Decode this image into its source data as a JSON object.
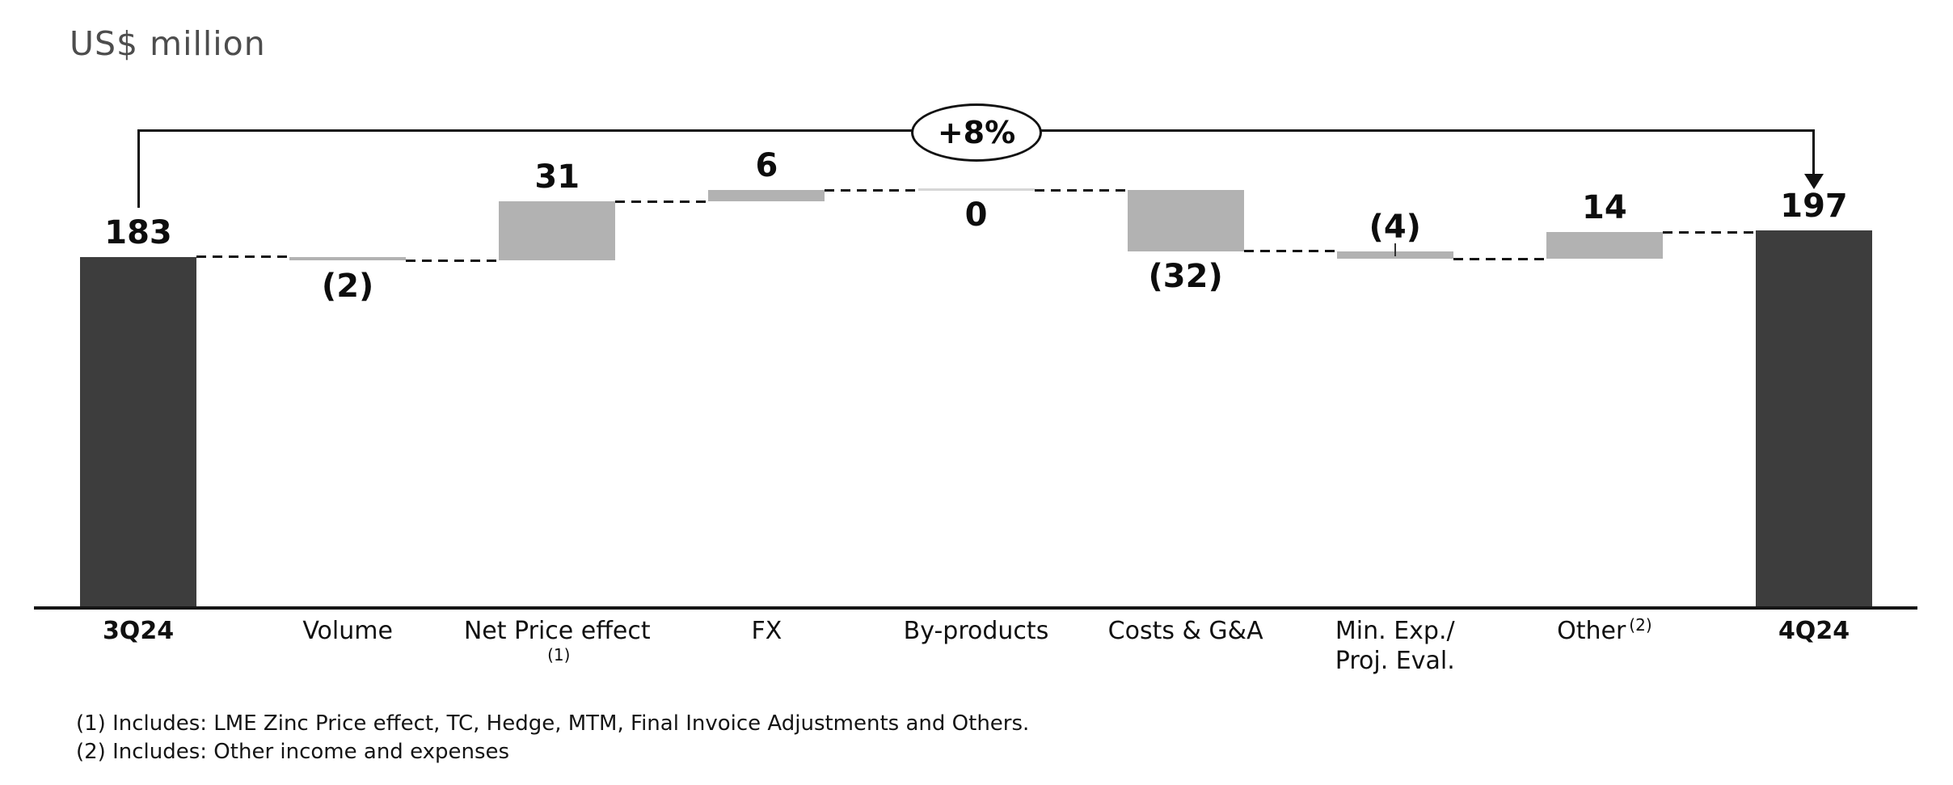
{
  "title": "US$ million",
  "annotation_oval": {
    "label": "+8%"
  },
  "footnotes": [
    "(1) Includes: LME Zinc Price effect, TC, Hedge, MTM, Final Invoice Adjustments and Others.",
    "(2) Includes: Other income and expenses"
  ],
  "chart_data": {
    "type": "waterfall",
    "title": "US$ million",
    "unit": "US$ million",
    "delta_annotation": "+8%",
    "baseline": 0,
    "ylim": [
      0,
      218
    ],
    "grid": false,
    "legend": false,
    "categories": [
      "3Q24",
      "Volume",
      "Net Price effect",
      "FX",
      "By-products",
      "Costs & G&A",
      "Min. Exp./ Proj. Eval.",
      "Other",
      "4Q24"
    ],
    "items": [
      {
        "category": "3Q24",
        "role": "total",
        "value": 183,
        "label": "183",
        "label_position": "above",
        "axis_label_bold": true
      },
      {
        "category": "Volume",
        "role": "change",
        "value": -2,
        "label": "(2)",
        "label_position": "below"
      },
      {
        "category": "Net Price effect",
        "axis_superscript": "(1)",
        "role": "change",
        "value": 31,
        "label": "31",
        "label_position": "above"
      },
      {
        "category": "FX",
        "role": "change",
        "value": 6,
        "label": "6",
        "label_position": "above"
      },
      {
        "category": "By-products",
        "role": "change",
        "value": 0,
        "label": "0",
        "label_position": "below"
      },
      {
        "category": "Costs & G&A",
        "role": "change",
        "value": -32,
        "label": "(32)",
        "label_position": "below"
      },
      {
        "category": "Min. Exp./ Proj. Eval.",
        "axis_label_lines": [
          "Min. Exp./",
          "Proj. Eval."
        ],
        "role": "change",
        "value": -4,
        "label": "(4)",
        "label_position": "above",
        "leader_line": true
      },
      {
        "category": "Other",
        "axis_superscript": "(2)",
        "role": "change",
        "value": 14,
        "label": "14",
        "label_position": "above"
      },
      {
        "category": "4Q24",
        "role": "total",
        "value": 197,
        "label": "197",
        "label_position": "above",
        "axis_label_bold": true
      }
    ],
    "colors": {
      "total_bar": "#3d3d3d",
      "change_bar": "#b2b2b2",
      "zero_bar": "#d6d6d6",
      "line": "#111111",
      "title_text": "#4d4d4d"
    }
  }
}
